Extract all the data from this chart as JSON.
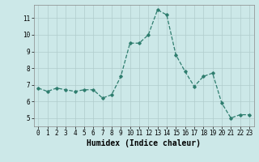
{
  "x": [
    0,
    1,
    2,
    3,
    4,
    5,
    6,
    7,
    8,
    9,
    10,
    11,
    12,
    13,
    14,
    15,
    16,
    17,
    18,
    19,
    20,
    21,
    22,
    23
  ],
  "y": [
    6.8,
    6.6,
    6.8,
    6.7,
    6.6,
    6.7,
    6.7,
    6.2,
    6.4,
    7.5,
    9.5,
    9.5,
    10.0,
    11.5,
    11.2,
    8.8,
    7.8,
    6.9,
    7.5,
    7.7,
    5.9,
    5.0,
    5.2,
    5.2
  ],
  "line_color": "#2e7d6e",
  "marker": "D",
  "marker_size": 1.8,
  "line_width": 0.9,
  "background_color": "#cce8e8",
  "grid_color": "#b0cccc",
  "xlabel": "Humidex (Indice chaleur)",
  "xlabel_fontsize": 7,
  "xlim": [
    -0.5,
    23.5
  ],
  "ylim": [
    4.5,
    11.8
  ],
  "yticks": [
    5,
    6,
    7,
    8,
    9,
    10,
    11
  ],
  "xticks": [
    0,
    1,
    2,
    3,
    4,
    5,
    6,
    7,
    8,
    9,
    10,
    11,
    12,
    13,
    14,
    15,
    16,
    17,
    18,
    19,
    20,
    21,
    22,
    23
  ],
  "tick_fontsize": 5.5
}
